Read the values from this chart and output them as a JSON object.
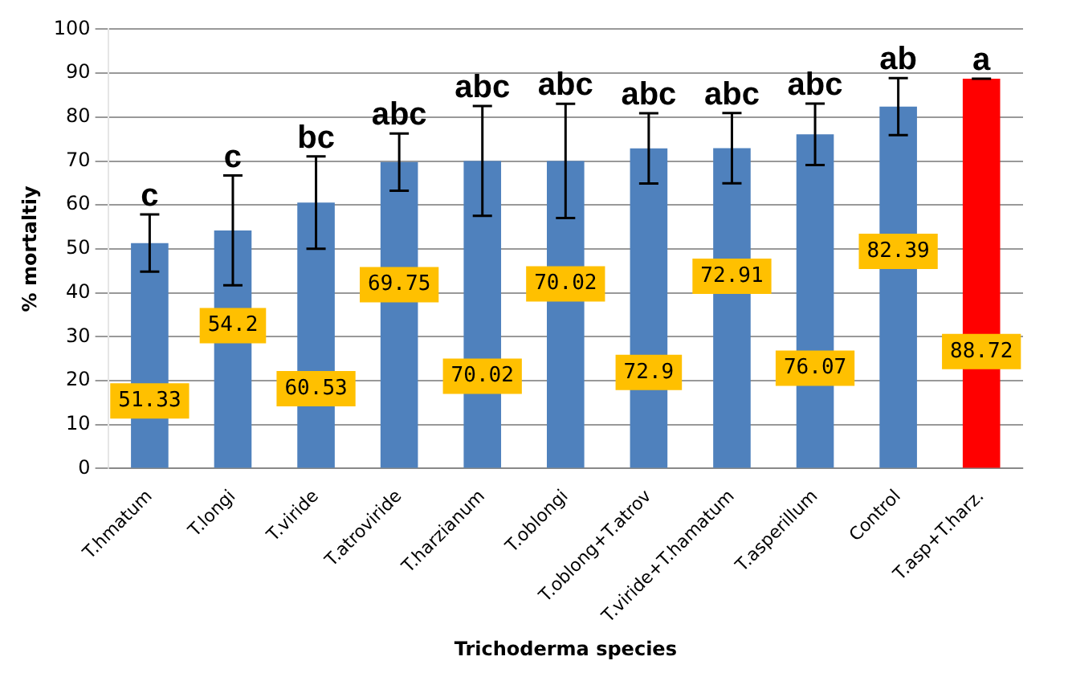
{
  "chart_data": {
    "type": "bar",
    "xlabel": "Trichoderma species",
    "ylabel": "% mortaltiy",
    "categories": [
      "T.hmatum",
      "T.longi",
      "T.viride",
      "T.atroviride",
      "T.harzianum",
      "T.oblongi",
      "T.oblong+T.atrov",
      "T.viride+T.hamatum",
      "T.asperillum",
      "Control",
      "T.asp+T.harz."
    ],
    "values": [
      51.33,
      54.2,
      60.53,
      69.75,
      70.02,
      70.02,
      72.9,
      72.91,
      76.07,
      82.39,
      88.72
    ],
    "colors": [
      "#4f81bd",
      "#4f81bd",
      "#4f81bd",
      "#4f81bd",
      "#4f81bd",
      "#4f81bd",
      "#4f81bd",
      "#4f81bd",
      "#4f81bd",
      "#4f81bd",
      "#ff0000"
    ],
    "errors": [
      6.5,
      12.5,
      10.5,
      6.5,
      12.5,
      13,
      8,
      8,
      7,
      6.5,
      0
    ],
    "data_labels": true,
    "annotations": [
      {
        "text": "c",
        "x": "T.hmatum",
        "y": 57.8
      },
      {
        "text": "c",
        "x": "T.longi",
        "y": 66.7
      },
      {
        "text": "bc",
        "x": "T.viride",
        "y": 71
      },
      {
        "text": "abc",
        "x": "T.atroviride",
        "y": 76.3
      },
      {
        "text": "abc",
        "x": "T.harzianum",
        "y": 82.5
      },
      {
        "text": "abc",
        "x": "T.oblongi",
        "y": 83
      },
      {
        "text": "abc",
        "x": "T.oblong+T.atrov",
        "y": 80.9
      },
      {
        "text": "abc",
        "x": "T.viride+T.hamatum",
        "y": 80.9
      },
      {
        "text": "abc",
        "x": "T.asperillum",
        "y": 83.1
      },
      {
        "text": "ab",
        "x": "Control",
        "y": 88.9
      },
      {
        "text": "a",
        "x": "T.asp+T.harz.",
        "y": 88.72
      }
    ],
    "ylim": [
      0,
      100
    ],
    "yticks": [
      0,
      10,
      20,
      30,
      40,
      50,
      60,
      70,
      80,
      90,
      100
    ],
    "grid": "y",
    "legend": false
  }
}
